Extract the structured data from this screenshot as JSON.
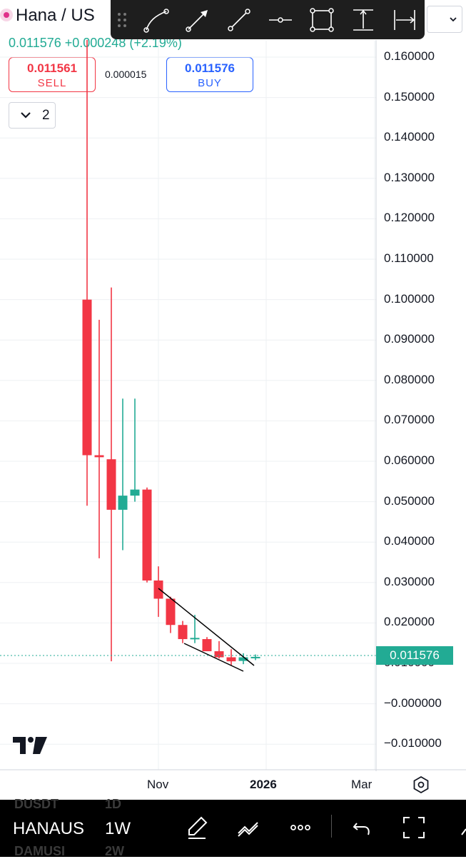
{
  "header": {
    "symbol": "Hana / US",
    "price_change": "0.011576 +0.000248 (+2.19%)",
    "sell": {
      "value": "0.011561",
      "label": "SELL"
    },
    "buy": {
      "value": "0.011576",
      "label": "BUY"
    },
    "spread": "0.000015",
    "collapse_count": "2"
  },
  "toolbar": {
    "tools": [
      "trend-line-icon",
      "arrow-icon",
      "ray-icon",
      "horizontal-line-icon",
      "rectangle-icon",
      "price-range-icon",
      "date-range-icon"
    ]
  },
  "chart": {
    "price_axis": [
      "0.160000",
      "0.150000",
      "0.140000",
      "0.130000",
      "0.120000",
      "0.110000",
      "0.100000",
      "0.090000",
      "0.080000",
      "0.070000",
      "0.060000",
      "0.050000",
      "0.040000",
      "0.030000",
      "0.020000",
      "0.010000",
      "−0.000000",
      "−0.010000"
    ],
    "current_price": "0.011576",
    "time_axis": [
      "Nov",
      "2026",
      "Mar"
    ],
    "colors": {
      "up": "#22ab94",
      "down": "#f23645",
      "grid": "#eef0f3"
    }
  },
  "bottom_bar": {
    "interval_above": "1D",
    "symbol_above": "DUSDT",
    "symbol": "HANAUS",
    "interval": "1W",
    "symbol_below": "DAMUSI",
    "interval_below": "2W"
  }
}
